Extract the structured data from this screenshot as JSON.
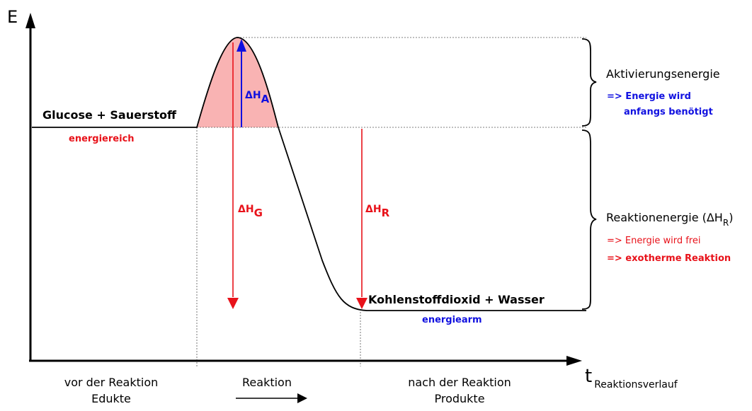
{
  "axes": {
    "y_label": "E",
    "x_label_main": "t",
    "x_label_sub": "Reaktionsverlauf"
  },
  "start": {
    "title": "Glucose + Sauerstoff",
    "subtitle": "energiereich"
  },
  "end": {
    "title": "Kohlenstoffdioxid + Wasser",
    "subtitle": "energiearm"
  },
  "arrows": {
    "activation": {
      "main": "ΔH",
      "sub": "A"
    },
    "total": {
      "main": "ΔH",
      "sub": "G"
    },
    "reaction": {
      "main": "ΔH",
      "sub": "R"
    }
  },
  "right_annotations": {
    "activation_title": "Aktivierungsenergie",
    "activation_note_1": "=> Energie wird",
    "activation_note_2": "anfangs benötigt",
    "reaction_title_main": "Reaktionenergie (ΔH",
    "reaction_title_sub": "R",
    "reaction_title_close": ")",
    "reaction_note_1": "=> Energie wird frei",
    "reaction_note_2": "=> exotherme Reaktion"
  },
  "phases": {
    "before_1": "vor der Reaktion",
    "before_2": "Edukte",
    "during": "Reaktion",
    "after_1": "nach der Reaktion",
    "after_2": "Produkte"
  },
  "colors": {
    "red": "#e8121a",
    "blue": "#1010e0",
    "fill": "#f9b3b3",
    "black": "#000000"
  }
}
